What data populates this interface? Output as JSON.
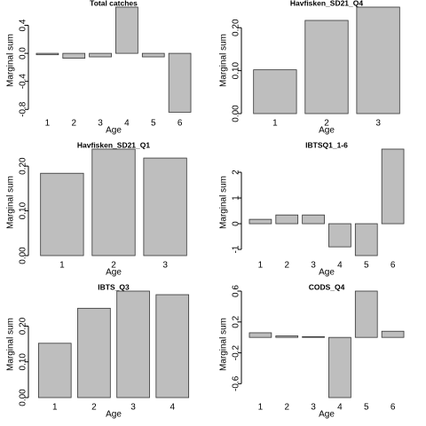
{
  "chart_data": [
    {
      "type": "bar",
      "title": "Total catches",
      "xlabel": "Age",
      "ylabel": "Marginal sum",
      "categories": [
        "1",
        "2",
        "3",
        "4",
        "5",
        "6"
      ],
      "values": [
        -0.02,
        -0.07,
        -0.05,
        0.66,
        -0.05,
        -0.84
      ],
      "color": "#bebebe",
      "ylim": [
        -0.86,
        0.66
      ],
      "yticks": [
        -0.8,
        -0.4,
        {
          "value": 0,
          "label": "0.0"
        },
        0.4
      ]
    },
    {
      "type": "bar",
      "title": "Havfisken_SD21_Q4",
      "xlabel": "Age",
      "ylabel": "Marginal sum",
      "categories": [
        "1",
        "2",
        "3"
      ],
      "values": [
        0.102,
        0.217,
        0.248
      ],
      "color": "#bebebe",
      "ylim": [
        0,
        0.248
      ],
      "yticks": [
        {
          "value": 0,
          "label": "0.00"
        },
        {
          "value": 0.1,
          "label": "0.10"
        },
        {
          "value": 0.2,
          "label": "0.20"
        }
      ]
    },
    {
      "type": "bar",
      "title": "Havfisken_SD21_Q1",
      "xlabel": "Age",
      "ylabel": "Marginal sum",
      "categories": [
        "1",
        "2",
        "3"
      ],
      "values": [
        0.184,
        0.238,
        0.218
      ],
      "color": "#bebebe",
      "ylim": [
        0,
        0.238
      ],
      "yticks": [
        {
          "value": 0,
          "label": "0.00"
        },
        {
          "value": 0.1,
          "label": "0.10"
        },
        {
          "value": 0.2,
          "label": "0.20"
        }
      ]
    },
    {
      "type": "bar",
      "title": "IBTSQ1_1-6",
      "xlabel": "Age",
      "ylabel": "Marginal sum",
      "categories": [
        "1",
        "2",
        "3",
        "4",
        "5",
        "6"
      ],
      "values": [
        0.17,
        0.34,
        0.34,
        -0.9,
        -1.24,
        2.9
      ],
      "color": "#bebebe",
      "ylim": [
        -1.24,
        2.9
      ],
      "yticks": [
        -1,
        0,
        1,
        2
      ]
    },
    {
      "type": "bar",
      "title": "IBTS_Q3",
      "xlabel": "Age",
      "ylabel": "Marginal sum",
      "categories": [
        "1",
        "2",
        "3",
        "4"
      ],
      "values": [
        0.152,
        0.25,
        0.298,
        0.288
      ],
      "color": "#bebebe",
      "ylim": [
        0,
        0.298
      ],
      "yticks": [
        {
          "value": 0,
          "label": "0.00"
        },
        {
          "value": 0.1,
          "label": "0.10"
        },
        {
          "value": 0.2,
          "label": "0.20"
        }
      ]
    },
    {
      "type": "bar",
      "title": "CODS_Q4",
      "xlabel": "Age",
      "ylabel": "Marginal sum",
      "categories": [
        "1",
        "2",
        "3",
        "4",
        "5",
        "6"
      ],
      "values": [
        0.06,
        0.02,
        0.01,
        -0.78,
        0.6,
        0.08
      ],
      "color": "#bebebe",
      "ylim": [
        -0.78,
        0.6
      ],
      "yticks": [
        -0.6,
        -0.2,
        0.2,
        0.6
      ]
    }
  ]
}
